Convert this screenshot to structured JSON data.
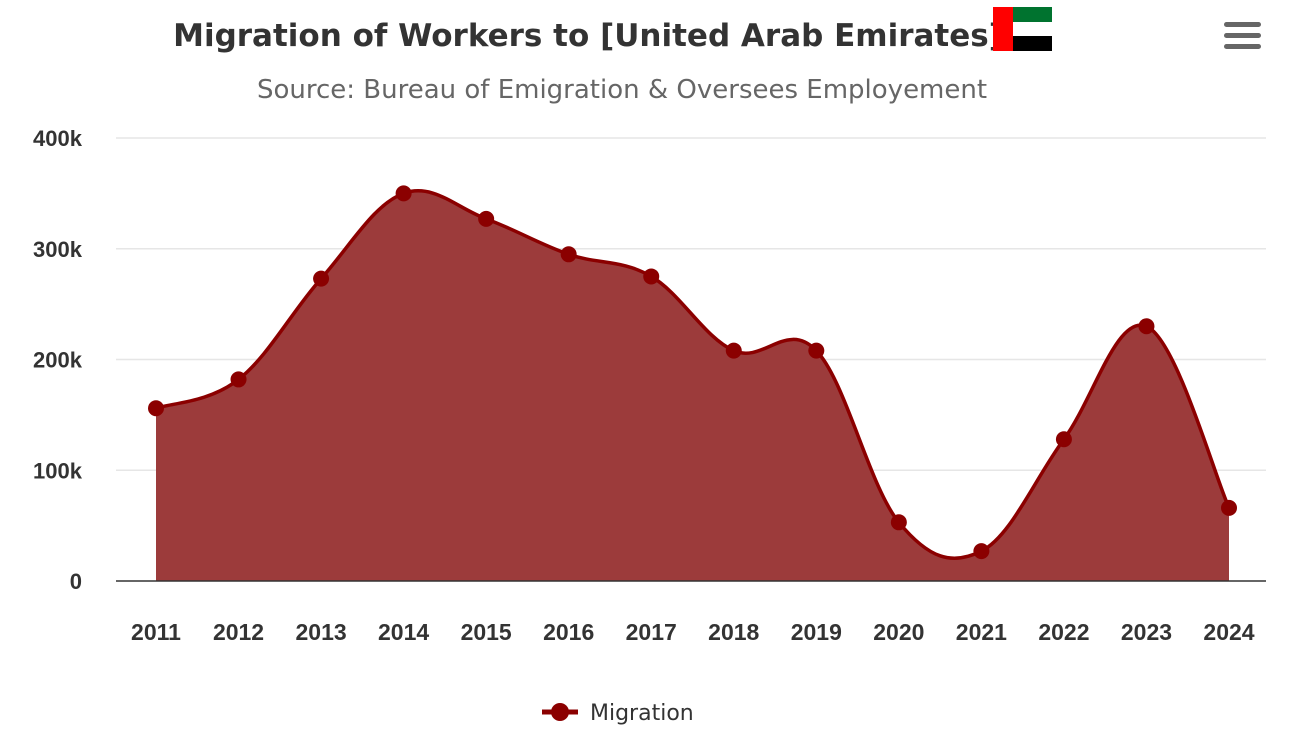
{
  "menu_icon": "hamburger-menu-icon",
  "flag_icon": "uae-flag-icon",
  "colors": {
    "series": "#8b0000",
    "area": "#9c3b3b",
    "flag_red": "#ff0000",
    "flag_green": "#00732f",
    "flag_white": "#ffffff",
    "flag_black": "#000000",
    "menu": "#666666"
  },
  "chart_data": {
    "type": "area",
    "title": "Migration of Workers to [United Arab Emirates]",
    "subtitle": "Source: Bureau of Emigration & Oversees Employement",
    "categories": [
      "2011",
      "2012",
      "2013",
      "2014",
      "2015",
      "2016",
      "2017",
      "2018",
      "2019",
      "2020",
      "2021",
      "2022",
      "2023",
      "2024"
    ],
    "series": [
      {
        "name": "Migration",
        "values": [
          156000,
          182000,
          273000,
          350000,
          327000,
          295000,
          275000,
          208000,
          208000,
          53000,
          27000,
          128000,
          230000,
          66000
        ]
      }
    ],
    "yticks": [
      "0",
      "100k",
      "200k",
      "300k",
      "400k"
    ],
    "ylim": [
      0,
      400000
    ],
    "grid": true,
    "smooth": true,
    "legend": "bottom-center"
  }
}
